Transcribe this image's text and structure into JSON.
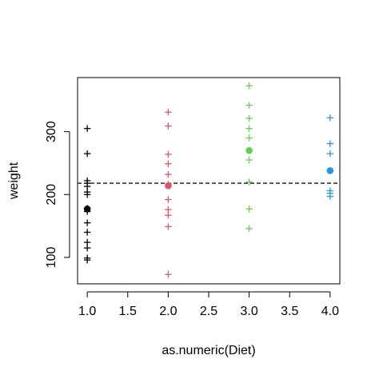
{
  "chart_data": {
    "type": "scatter",
    "xlabel": "as.numeric(Diet)",
    "ylabel": "weight",
    "xlim": [
      0.88,
      4.12
    ],
    "ylim": [
      58,
      386
    ],
    "x_ticks": [
      1.0,
      1.5,
      2.0,
      2.5,
      3.0,
      3.5,
      4.0
    ],
    "x_tick_labels": [
      "1.0",
      "1.5",
      "2.0",
      "2.5",
      "3.0",
      "3.5",
      "4.0"
    ],
    "y_ticks": [
      100,
      200,
      300
    ],
    "y_tick_labels": [
      "100",
      "200",
      "300"
    ],
    "grid": false,
    "overall_mean": 218,
    "reference_line": {
      "y": 218,
      "style": "dashed",
      "color": "#000000"
    },
    "series": [
      {
        "x": 1,
        "color": "#000000",
        "mean": 177,
        "points": [
          305,
          265,
          222,
          218,
          213,
          204,
          200,
          178,
          173,
          155,
          140,
          124,
          115,
          99,
          96
        ]
      },
      {
        "x": 2,
        "color": "#DF536B",
        "mean": 214,
        "points": [
          331,
          309,
          264,
          249,
          232,
          216,
          192,
          176,
          167,
          149,
          73
        ]
      },
      {
        "x": 3,
        "color": "#61D04F",
        "mean": 270,
        "points": [
          373,
          342,
          321,
          305,
          290,
          255,
          220,
          177,
          146
        ]
      },
      {
        "x": 4,
        "color": "#2297E6",
        "mean": 238,
        "points": [
          322,
          281,
          265,
          206,
          202,
          197
        ]
      }
    ]
  }
}
